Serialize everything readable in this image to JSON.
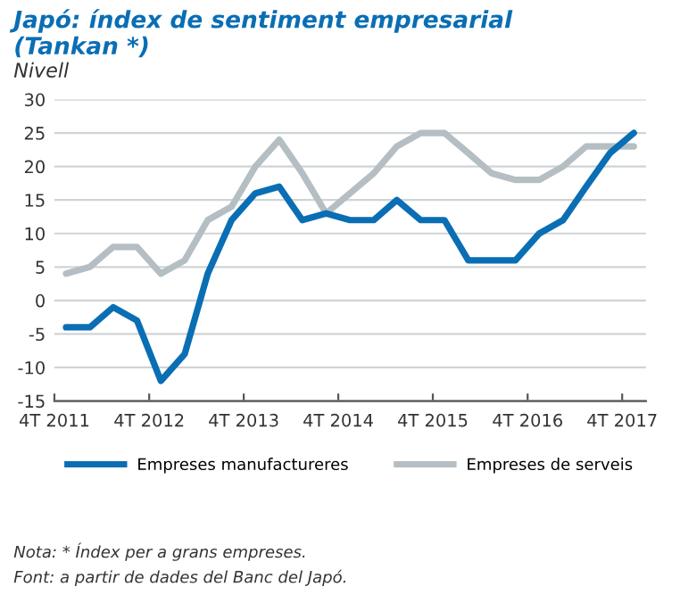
{
  "chart_data": {
    "type": "line",
    "title": "Japó: índex de sentiment empresarial\n(Tankan *)",
    "ylabel": "Nivell",
    "x": [
      "2011-11-15",
      "2012-02-15",
      "2012-05-15",
      "2012-08-15",
      "2012-11-15",
      "2013-02-15",
      "2013-05-15",
      "2013-08-15",
      "2013-11-15",
      "2014-02-15",
      "2014-05-15",
      "2014-08-15",
      "2014-11-15",
      "2015-02-15",
      "2015-05-15",
      "2015-08-15",
      "2015-11-15",
      "2016-02-15",
      "2016-05-15",
      "2016-08-15",
      "2016-11-15",
      "2017-02-15",
      "2017-05-15",
      "2017-08-15",
      "2017-11-15"
    ],
    "series": [
      {
        "name": "Empreses manufactureres",
        "color": "#0a6eb4",
        "values": [
          -4,
          -4,
          -1,
          -3,
          -12,
          -8,
          4,
          12,
          16,
          17,
          12,
          13,
          12,
          12,
          15,
          12,
          12,
          6,
          6,
          6,
          10,
          12,
          17,
          22,
          25
        ]
      },
      {
        "name": "Empreses de serveis",
        "color": "#b4bec3",
        "values": [
          4,
          5,
          8,
          8,
          4,
          6,
          12,
          14,
          20,
          24,
          19,
          13,
          16,
          19,
          23,
          25,
          25,
          22,
          19,
          18,
          18,
          20,
          23,
          23,
          23
        ]
      }
    ],
    "xlim": [
      "2011-10-01",
      "2018-01-01"
    ],
    "xticks": [
      {
        "value": "2011-10-01",
        "label": "4T 2011"
      },
      {
        "value": "2012-10-01",
        "label": "4T 2012"
      },
      {
        "value": "2013-10-01",
        "label": "4T 2013"
      },
      {
        "value": "2014-10-01",
        "label": "4T 2014"
      },
      {
        "value": "2015-10-01",
        "label": "4T 2015"
      },
      {
        "value": "2016-10-01",
        "label": "4T 2016"
      },
      {
        "value": "2017-10-01",
        "label": "4T 2017"
      }
    ],
    "ylim": [
      -15,
      30
    ],
    "yticks": [
      -15,
      -10,
      -5,
      0,
      5,
      10,
      15,
      20,
      25,
      30
    ],
    "grid": "y",
    "legend": "bottom",
    "marker": "none",
    "line_style": "solid",
    "annotations": [
      "Nota: * Índex per a grans empreses.",
      "Font: a partir de dades del Banc del Japó."
    ]
  }
}
